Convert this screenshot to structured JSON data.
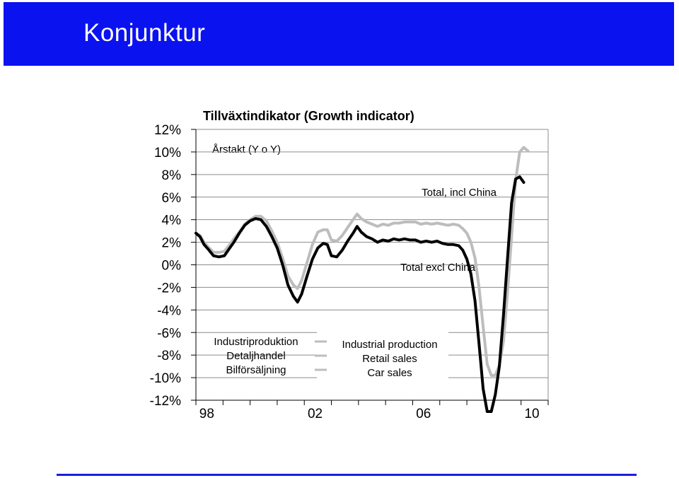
{
  "header": {
    "title": "Konjunktur",
    "background_color": "#0b12f0"
  },
  "chart_data": {
    "type": "line",
    "title": "Tillväxtindikator (Growth indicator)",
    "subtitle": "Årstakt (Y o Y)",
    "ylim": [
      -12,
      12
    ],
    "y_ticks": [
      "12%",
      "10%",
      "8%",
      "6%",
      "4%",
      "2%",
      "0%",
      "-2%",
      "-4%",
      "-6%",
      "-8%",
      "-10%",
      "-12%"
    ],
    "y_tick_values": [
      12,
      10,
      8,
      6,
      4,
      2,
      0,
      -2,
      -4,
      -6,
      -8,
      -10,
      -12
    ],
    "xlim": [
      1997.6,
      2010.6
    ],
    "x_tick_labels": [
      "98",
      "02",
      "06",
      "10"
    ],
    "x_tick_positions": [
      1998,
      2002,
      2006,
      2010
    ],
    "x_tick_marks": [
      1997.6,
      1998.6,
      1999.6,
      2000.6,
      2001.6,
      2002.6,
      2003.6,
      2004.6,
      2005.6,
      2006.6,
      2007.6,
      2008.6,
      2009.6,
      2010.6
    ],
    "grid": "horizontal",
    "legend_left": [
      "Industriproduktion",
      "Detaljhandel",
      "Bilförsäljning"
    ],
    "legend_right": [
      "Industrial production",
      "Retail sales",
      "Car sales"
    ],
    "series": [
      {
        "name": "Total, incl China",
        "color": "#bdbdbd",
        "points": [
          [
            1997.6,
            2.8
          ],
          [
            1997.75,
            2.6
          ],
          [
            1997.9,
            2.0
          ],
          [
            1998.05,
            1.6
          ],
          [
            1998.25,
            1.1
          ],
          [
            1998.45,
            1.1
          ],
          [
            1998.65,
            1.2
          ],
          [
            1998.85,
            1.8
          ],
          [
            1999.0,
            2.3
          ],
          [
            1999.2,
            2.9
          ],
          [
            1999.4,
            3.6
          ],
          [
            1999.6,
            4.0
          ],
          [
            1999.8,
            4.3
          ],
          [
            2000.0,
            4.3
          ],
          [
            2000.2,
            3.9
          ],
          [
            2000.4,
            3.0
          ],
          [
            2000.6,
            2.0
          ],
          [
            2000.8,
            0.6
          ],
          [
            2001.0,
            -1.0
          ],
          [
            2001.2,
            -1.8
          ],
          [
            2001.35,
            -2.1
          ],
          [
            2001.5,
            -1.4
          ],
          [
            2001.7,
            0.2
          ],
          [
            2001.9,
            1.8
          ],
          [
            2002.1,
            2.9
          ],
          [
            2002.3,
            3.1
          ],
          [
            2002.45,
            3.1
          ],
          [
            2002.6,
            2.2
          ],
          [
            2002.8,
            2.1
          ],
          [
            2003.0,
            2.6
          ],
          [
            2003.2,
            3.3
          ],
          [
            2003.4,
            4.0
          ],
          [
            2003.55,
            4.5
          ],
          [
            2003.7,
            4.1
          ],
          [
            2003.9,
            3.8
          ],
          [
            2004.1,
            3.6
          ],
          [
            2004.3,
            3.4
          ],
          [
            2004.5,
            3.6
          ],
          [
            2004.7,
            3.5
          ],
          [
            2004.9,
            3.7
          ],
          [
            2005.1,
            3.7
          ],
          [
            2005.3,
            3.8
          ],
          [
            2005.5,
            3.8
          ],
          [
            2005.7,
            3.8
          ],
          [
            2005.9,
            3.6
          ],
          [
            2006.1,
            3.7
          ],
          [
            2006.3,
            3.6
          ],
          [
            2006.5,
            3.7
          ],
          [
            2006.7,
            3.6
          ],
          [
            2006.9,
            3.5
          ],
          [
            2007.1,
            3.6
          ],
          [
            2007.3,
            3.5
          ],
          [
            2007.45,
            3.2
          ],
          [
            2007.6,
            2.8
          ],
          [
            2007.75,
            2.0
          ],
          [
            2007.9,
            0.6
          ],
          [
            2008.05,
            -2.0
          ],
          [
            2008.2,
            -5.5
          ],
          [
            2008.35,
            -8.8
          ],
          [
            2008.5,
            -9.8
          ],
          [
            2008.65,
            -9.8
          ],
          [
            2008.8,
            -8.9
          ],
          [
            2008.95,
            -6.8
          ],
          [
            2009.1,
            -2.5
          ],
          [
            2009.25,
            2.5
          ],
          [
            2009.4,
            7.5
          ],
          [
            2009.55,
            10.0
          ],
          [
            2009.7,
            10.4
          ],
          [
            2009.85,
            10.1
          ]
        ]
      },
      {
        "name": "Total excl China",
        "color": "#000000",
        "points": [
          [
            1997.6,
            2.8
          ],
          [
            1997.75,
            2.5
          ],
          [
            1997.9,
            1.8
          ],
          [
            1998.05,
            1.4
          ],
          [
            1998.25,
            0.8
          ],
          [
            1998.45,
            0.7
          ],
          [
            1998.65,
            0.8
          ],
          [
            1998.85,
            1.5
          ],
          [
            1999.0,
            2.0
          ],
          [
            1999.2,
            2.8
          ],
          [
            1999.4,
            3.5
          ],
          [
            1999.6,
            3.9
          ],
          [
            1999.8,
            4.1
          ],
          [
            2000.0,
            4.0
          ],
          [
            2000.2,
            3.4
          ],
          [
            2000.4,
            2.5
          ],
          [
            2000.6,
            1.5
          ],
          [
            2000.8,
            0.0
          ],
          [
            2001.0,
            -1.8
          ],
          [
            2001.2,
            -2.8
          ],
          [
            2001.35,
            -3.3
          ],
          [
            2001.5,
            -2.6
          ],
          [
            2001.7,
            -1.0
          ],
          [
            2001.9,
            0.5
          ],
          [
            2002.1,
            1.5
          ],
          [
            2002.3,
            1.9
          ],
          [
            2002.45,
            1.8
          ],
          [
            2002.6,
            0.8
          ],
          [
            2002.8,
            0.7
          ],
          [
            2003.0,
            1.3
          ],
          [
            2003.2,
            2.1
          ],
          [
            2003.4,
            2.8
          ],
          [
            2003.55,
            3.4
          ],
          [
            2003.7,
            2.9
          ],
          [
            2003.9,
            2.5
          ],
          [
            2004.1,
            2.3
          ],
          [
            2004.3,
            2.0
          ],
          [
            2004.5,
            2.2
          ],
          [
            2004.7,
            2.1
          ],
          [
            2004.9,
            2.3
          ],
          [
            2005.1,
            2.2
          ],
          [
            2005.3,
            2.3
          ],
          [
            2005.5,
            2.2
          ],
          [
            2005.7,
            2.2
          ],
          [
            2005.9,
            2.0
          ],
          [
            2006.1,
            2.1
          ],
          [
            2006.3,
            2.0
          ],
          [
            2006.5,
            2.1
          ],
          [
            2006.7,
            1.9
          ],
          [
            2006.9,
            1.8
          ],
          [
            2007.1,
            1.8
          ],
          [
            2007.3,
            1.7
          ],
          [
            2007.45,
            1.3
          ],
          [
            2007.6,
            0.5
          ],
          [
            2007.75,
            -0.8
          ],
          [
            2007.9,
            -3.2
          ],
          [
            2008.05,
            -7.0
          ],
          [
            2008.2,
            -11.0
          ],
          [
            2008.35,
            -13.0
          ],
          [
            2008.5,
            -13.0
          ],
          [
            2008.65,
            -11.5
          ],
          [
            2008.8,
            -9.0
          ],
          [
            2008.95,
            -4.5
          ],
          [
            2009.1,
            0.5
          ],
          [
            2009.25,
            5.5
          ],
          [
            2009.4,
            7.6
          ],
          [
            2009.55,
            7.8
          ],
          [
            2009.7,
            7.3
          ]
        ]
      }
    ]
  }
}
